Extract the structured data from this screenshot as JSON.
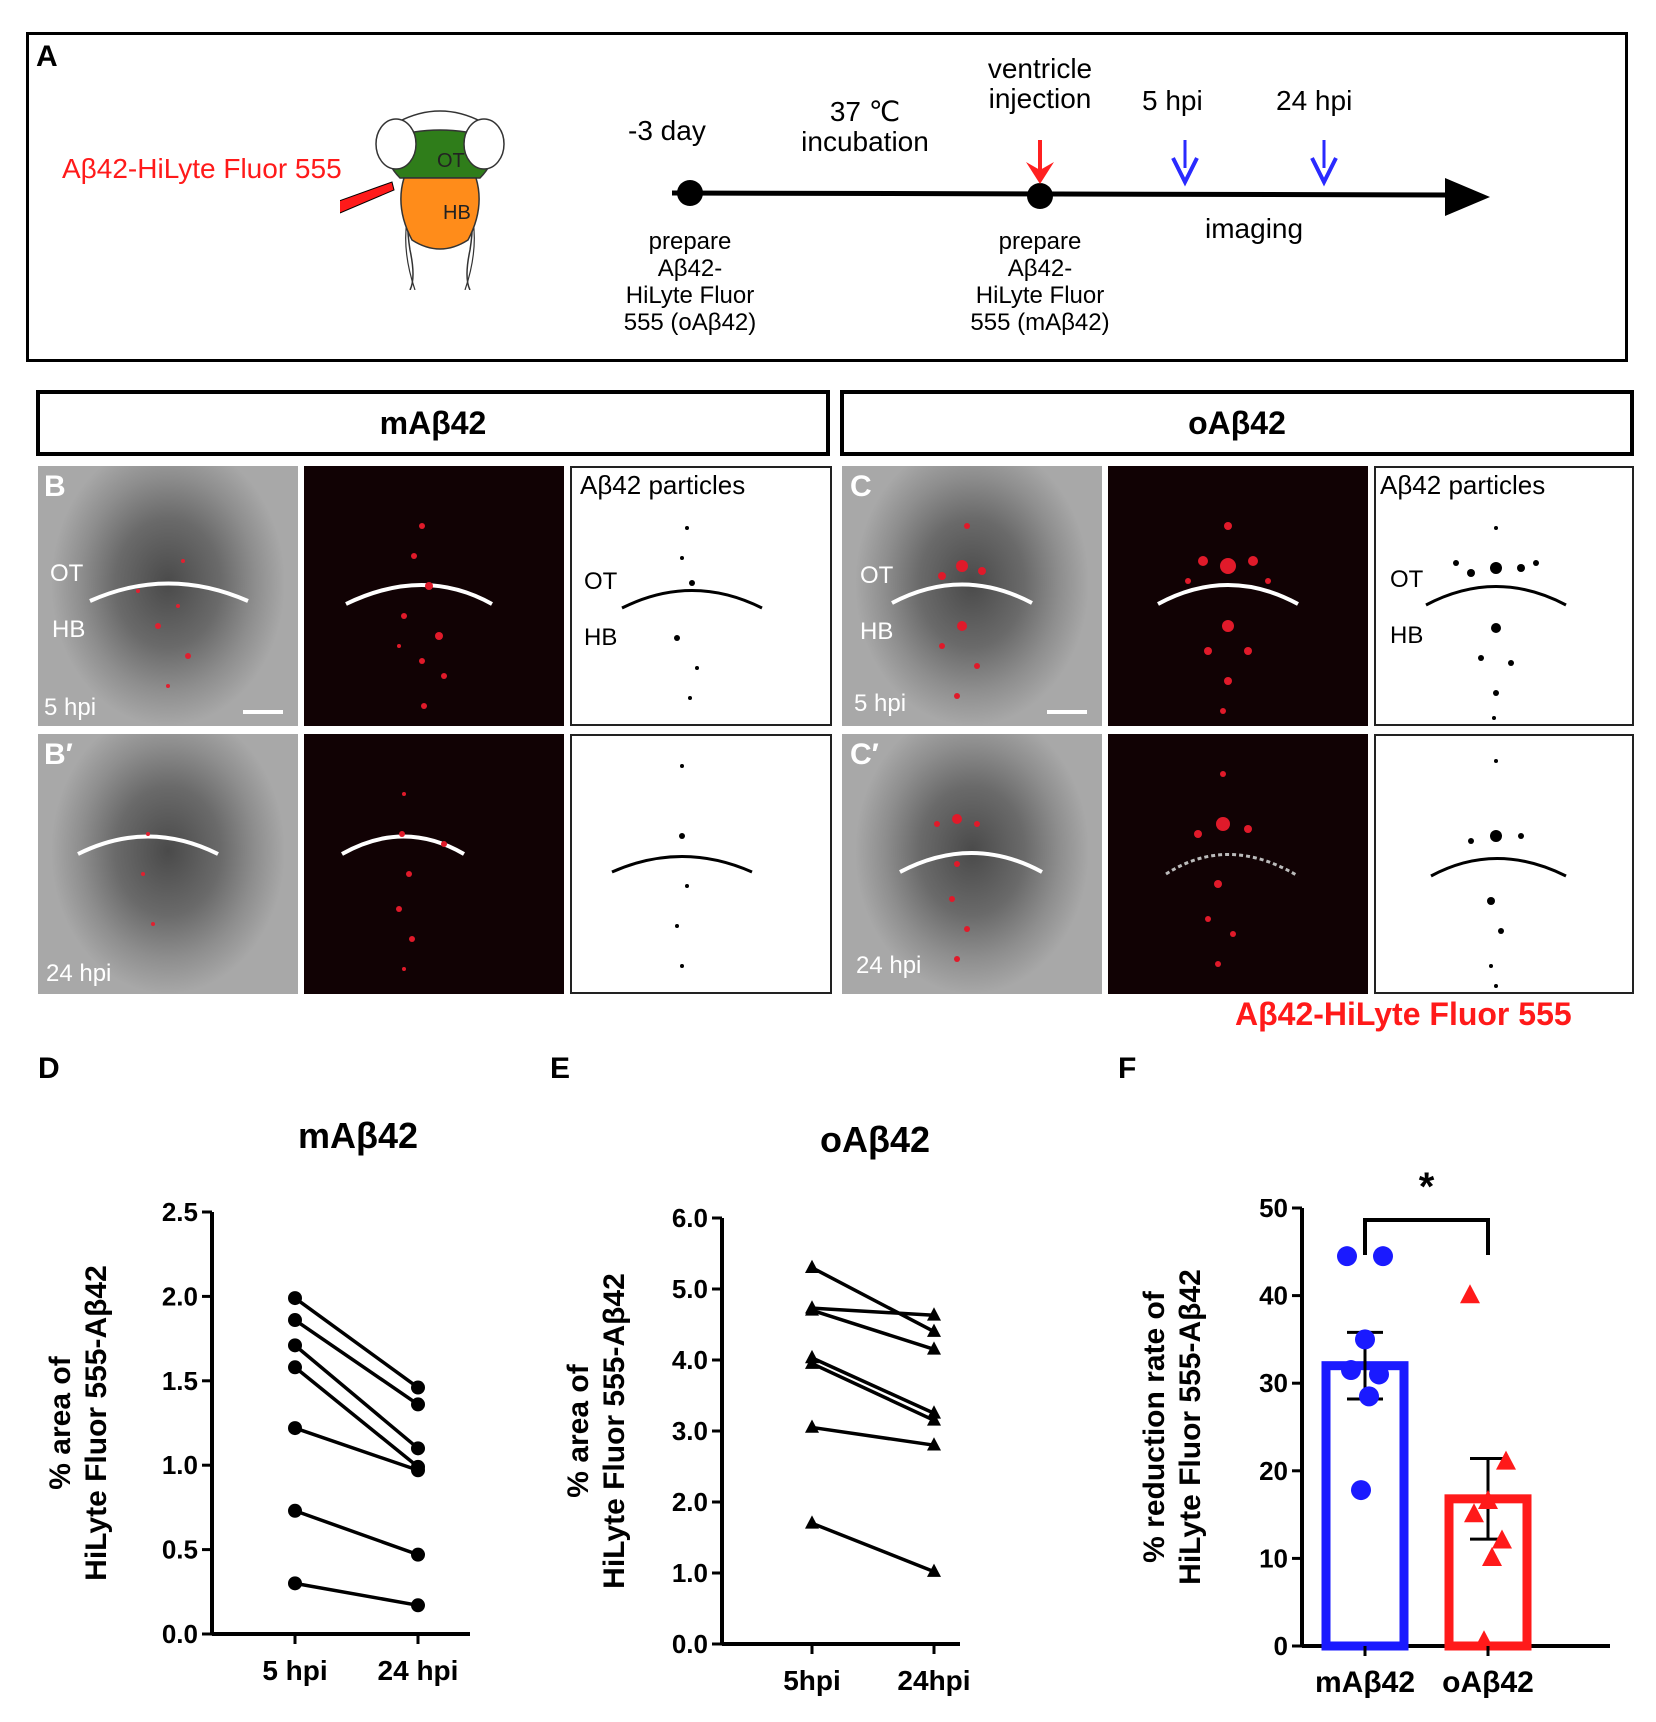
{
  "panelA": {
    "letter": "A",
    "probe_label": "Aβ42-HiLyte Fluor 555",
    "ot": "OT",
    "hb": "HB",
    "day_label": "-3 day",
    "incubation": [
      "37 ℃",
      "incubation"
    ],
    "injection": [
      "ventricle",
      "injection"
    ],
    "hpi5": "5 hpi",
    "hpi24": "24 hpi",
    "prepare_o": [
      "prepare",
      "Aβ42-",
      "HiLyte Fluor",
      "555 (oAβ42)"
    ],
    "prepare_m": [
      "prepare",
      "Aβ42-",
      "HiLyte Fluor",
      "555 (mAβ42)"
    ],
    "imaging": "imaging",
    "colors": {
      "injection_arrow": "#ff2020",
      "imaging_arrow": "#2a2aff",
      "ot_fill": "#2f7d1a",
      "hb_fill": "#ff8c1a"
    }
  },
  "images": {
    "m_header": "mAβ42",
    "o_header": "oAβ42",
    "B": "B",
    "Bp": "B′",
    "C": "C",
    "Cp": "C′",
    "particles": "Aβ42 particles",
    "ot": "OT",
    "hb": "HB",
    "hpi5": "5 hpi",
    "hpi24": "24 hpi",
    "legend": "Aβ42-HiLyte Fluor 555"
  },
  "chart_data": [
    {
      "id": "D",
      "letter": "D",
      "type": "line",
      "title": "mAβ42",
      "ylabel": [
        "% area of",
        "HiLyte Fluor 555-Aβ42"
      ],
      "categories": [
        "5 hpi",
        "24 hpi"
      ],
      "ylim": [
        0,
        2.5
      ],
      "yticks": [
        "0.0",
        "0.5",
        "1.0",
        "1.5",
        "2.0",
        "2.5"
      ],
      "marker": "circle",
      "series": [
        {
          "values": [
            1.99,
            1.46
          ]
        },
        {
          "values": [
            1.86,
            1.36
          ]
        },
        {
          "values": [
            1.71,
            1.1
          ]
        },
        {
          "values": [
            1.58,
            0.99
          ]
        },
        {
          "values": [
            1.22,
            0.97
          ]
        },
        {
          "values": [
            0.73,
            0.47
          ]
        },
        {
          "values": [
            0.3,
            0.17
          ]
        }
      ]
    },
    {
      "id": "E",
      "letter": "E",
      "type": "line",
      "title": "oAβ42",
      "ylabel": [
        "% area of",
        "HiLyte Fluor 555-Aβ42"
      ],
      "categories": [
        "5hpi",
        "24hpi"
      ],
      "ylim": [
        0,
        6
      ],
      "yticks": [
        "0.0",
        "1.0",
        "2.0",
        "3.0",
        "4.0",
        "5.0",
        "6.0"
      ],
      "marker": "triangle",
      "series": [
        {
          "values": [
            5.3,
            4.4
          ]
        },
        {
          "values": [
            4.73,
            4.63
          ]
        },
        {
          "values": [
            4.7,
            4.15
          ]
        },
        {
          "values": [
            4.03,
            3.25
          ]
        },
        {
          "values": [
            3.95,
            3.15
          ]
        },
        {
          "values": [
            3.05,
            2.8
          ]
        },
        {
          "values": [
            1.7,
            1.02
          ]
        }
      ]
    },
    {
      "id": "F",
      "letter": "F",
      "type": "bar",
      "ylabel": [
        "% reduction rate of",
        "HiLyte Fluor 555-Aβ42"
      ],
      "categories": [
        "mAβ42",
        "oAβ42"
      ],
      "ylim": [
        0,
        50
      ],
      "yticks": [
        "0",
        "10",
        "20",
        "30",
        "40",
        "50"
      ],
      "significance": "*",
      "series": [
        {
          "name": "mAβ42",
          "mean": 32,
          "sem": 3.8,
          "color": "#1a1aff",
          "marker": "circle",
          "points": [
            44.5,
            44.5,
            35,
            31.5,
            31,
            28.5,
            17.8
          ]
        },
        {
          "name": "oAβ42",
          "mean": 16.8,
          "sem": 4.6,
          "color": "#ff1a1a",
          "marker": "triangle",
          "points": [
            40,
            21,
            16.5,
            15,
            12,
            10,
            0.5
          ]
        }
      ]
    }
  ]
}
